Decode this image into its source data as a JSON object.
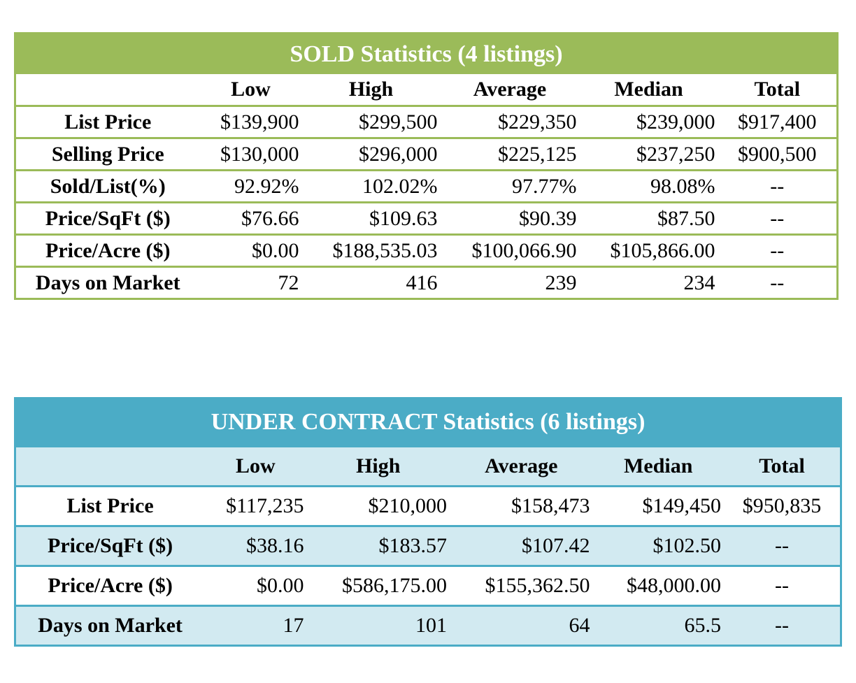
{
  "sold": {
    "title": "SOLD Statistics (4 listings)",
    "columns": [
      "",
      "Low",
      "High",
      "Average",
      "Median",
      "Total"
    ],
    "rows": [
      {
        "label": "List Price",
        "low": "$139,900",
        "high": "$299,500",
        "average": "$229,350",
        "median": "$239,000",
        "total": "$917,400"
      },
      {
        "label": "Selling Price",
        "low": "$130,000",
        "high": "$296,000",
        "average": "$225,125",
        "median": "$237,250",
        "total": "$900,500"
      },
      {
        "label": "Sold/List(%)",
        "low": "92.92%",
        "high": "102.02%",
        "average": "97.77%",
        "median": "98.08%",
        "total": "--"
      },
      {
        "label": "Price/SqFt ($)",
        "low": "$76.66",
        "high": "$109.63",
        "average": "$90.39",
        "median": "$87.50",
        "total": "--"
      },
      {
        "label": "Price/Acre ($)",
        "low": "$0.00",
        "high": "$188,535.03",
        "average": "$100,066.90",
        "median": "$105,866.00",
        "total": "--"
      },
      {
        "label": "Days on Market",
        "low": "72",
        "high": "416",
        "average": "239",
        "median": "234",
        "total": "--"
      }
    ]
  },
  "under_contract": {
    "title": "UNDER CONTRACT Statistics (6 listings)",
    "columns": [
      "",
      "Low",
      "High",
      "Average",
      "Median",
      "Total"
    ],
    "rows": [
      {
        "label": "List Price",
        "low": "$117,235",
        "high": "$210,000",
        "average": "$158,473",
        "median": "$149,450",
        "total": "$950,835"
      },
      {
        "label": "Price/SqFt ($)",
        "low": "$38.16",
        "high": "$183.57",
        "average": "$107.42",
        "median": "$102.50",
        "total": "--"
      },
      {
        "label": "Price/Acre ($)",
        "low": "$0.00",
        "high": "$586,175.00",
        "average": "$155,362.50",
        "median": "$48,000.00",
        "total": "--"
      },
      {
        "label": "Days on Market",
        "low": "17",
        "high": "101",
        "average": "64",
        "median": "65.5",
        "total": "--"
      }
    ]
  },
  "colors": {
    "sold_accent": "#9bbb59",
    "under_contract_accent": "#4bacc6",
    "under_contract_tint": "#d2eaf1"
  }
}
